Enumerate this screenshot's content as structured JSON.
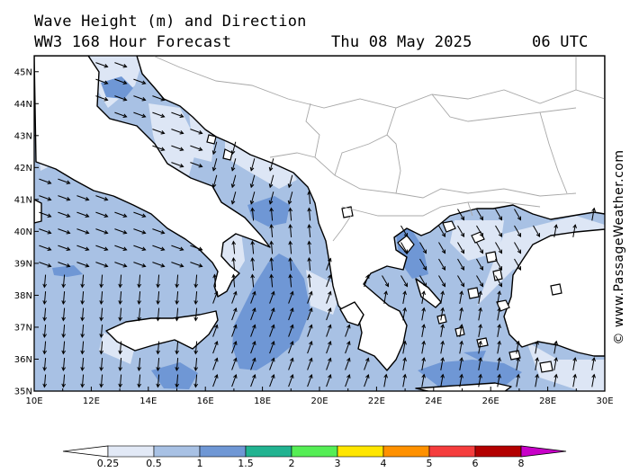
{
  "header": {
    "title_line1": "Wave Height (m) and Direction",
    "title_line2": "WW3 168 Hour Forecast",
    "date": "Thu 08 May 2025",
    "time": "06 UTC"
  },
  "credit": "© www.PassageWeather.com",
  "map": {
    "lon_range": [
      10,
      30
    ],
    "lat_range": [
      35,
      45.5
    ],
    "lon_ticks": [
      "10E",
      "12E",
      "14E",
      "16E",
      "18E",
      "20E",
      "22E",
      "24E",
      "26E",
      "28E",
      "30E"
    ],
    "lat_ticks": [
      "35N",
      "36N",
      "37N",
      "38N",
      "39N",
      "40N",
      "41N",
      "42N",
      "43N",
      "44N",
      "45N"
    ],
    "colors": {
      "land": "#ffffff",
      "sea_0_25": "#dde6f5",
      "sea_0_5": "#a8c1e4",
      "sea_1": "#6f97d5",
      "coast": "#000000",
      "border": "#a8a8a8"
    }
  },
  "legend": {
    "labels": [
      "0.25",
      "0.5",
      "1",
      "1.5",
      "2",
      "3",
      "4",
      "5",
      "6",
      "8"
    ],
    "colors": [
      "#e2e9f6",
      "#a8c1e4",
      "#6f97d5",
      "#22b391",
      "#55ee55",
      "#ffe600",
      "#ff9100",
      "#f53d3d",
      "#b30000",
      "#c800c8"
    ]
  }
}
